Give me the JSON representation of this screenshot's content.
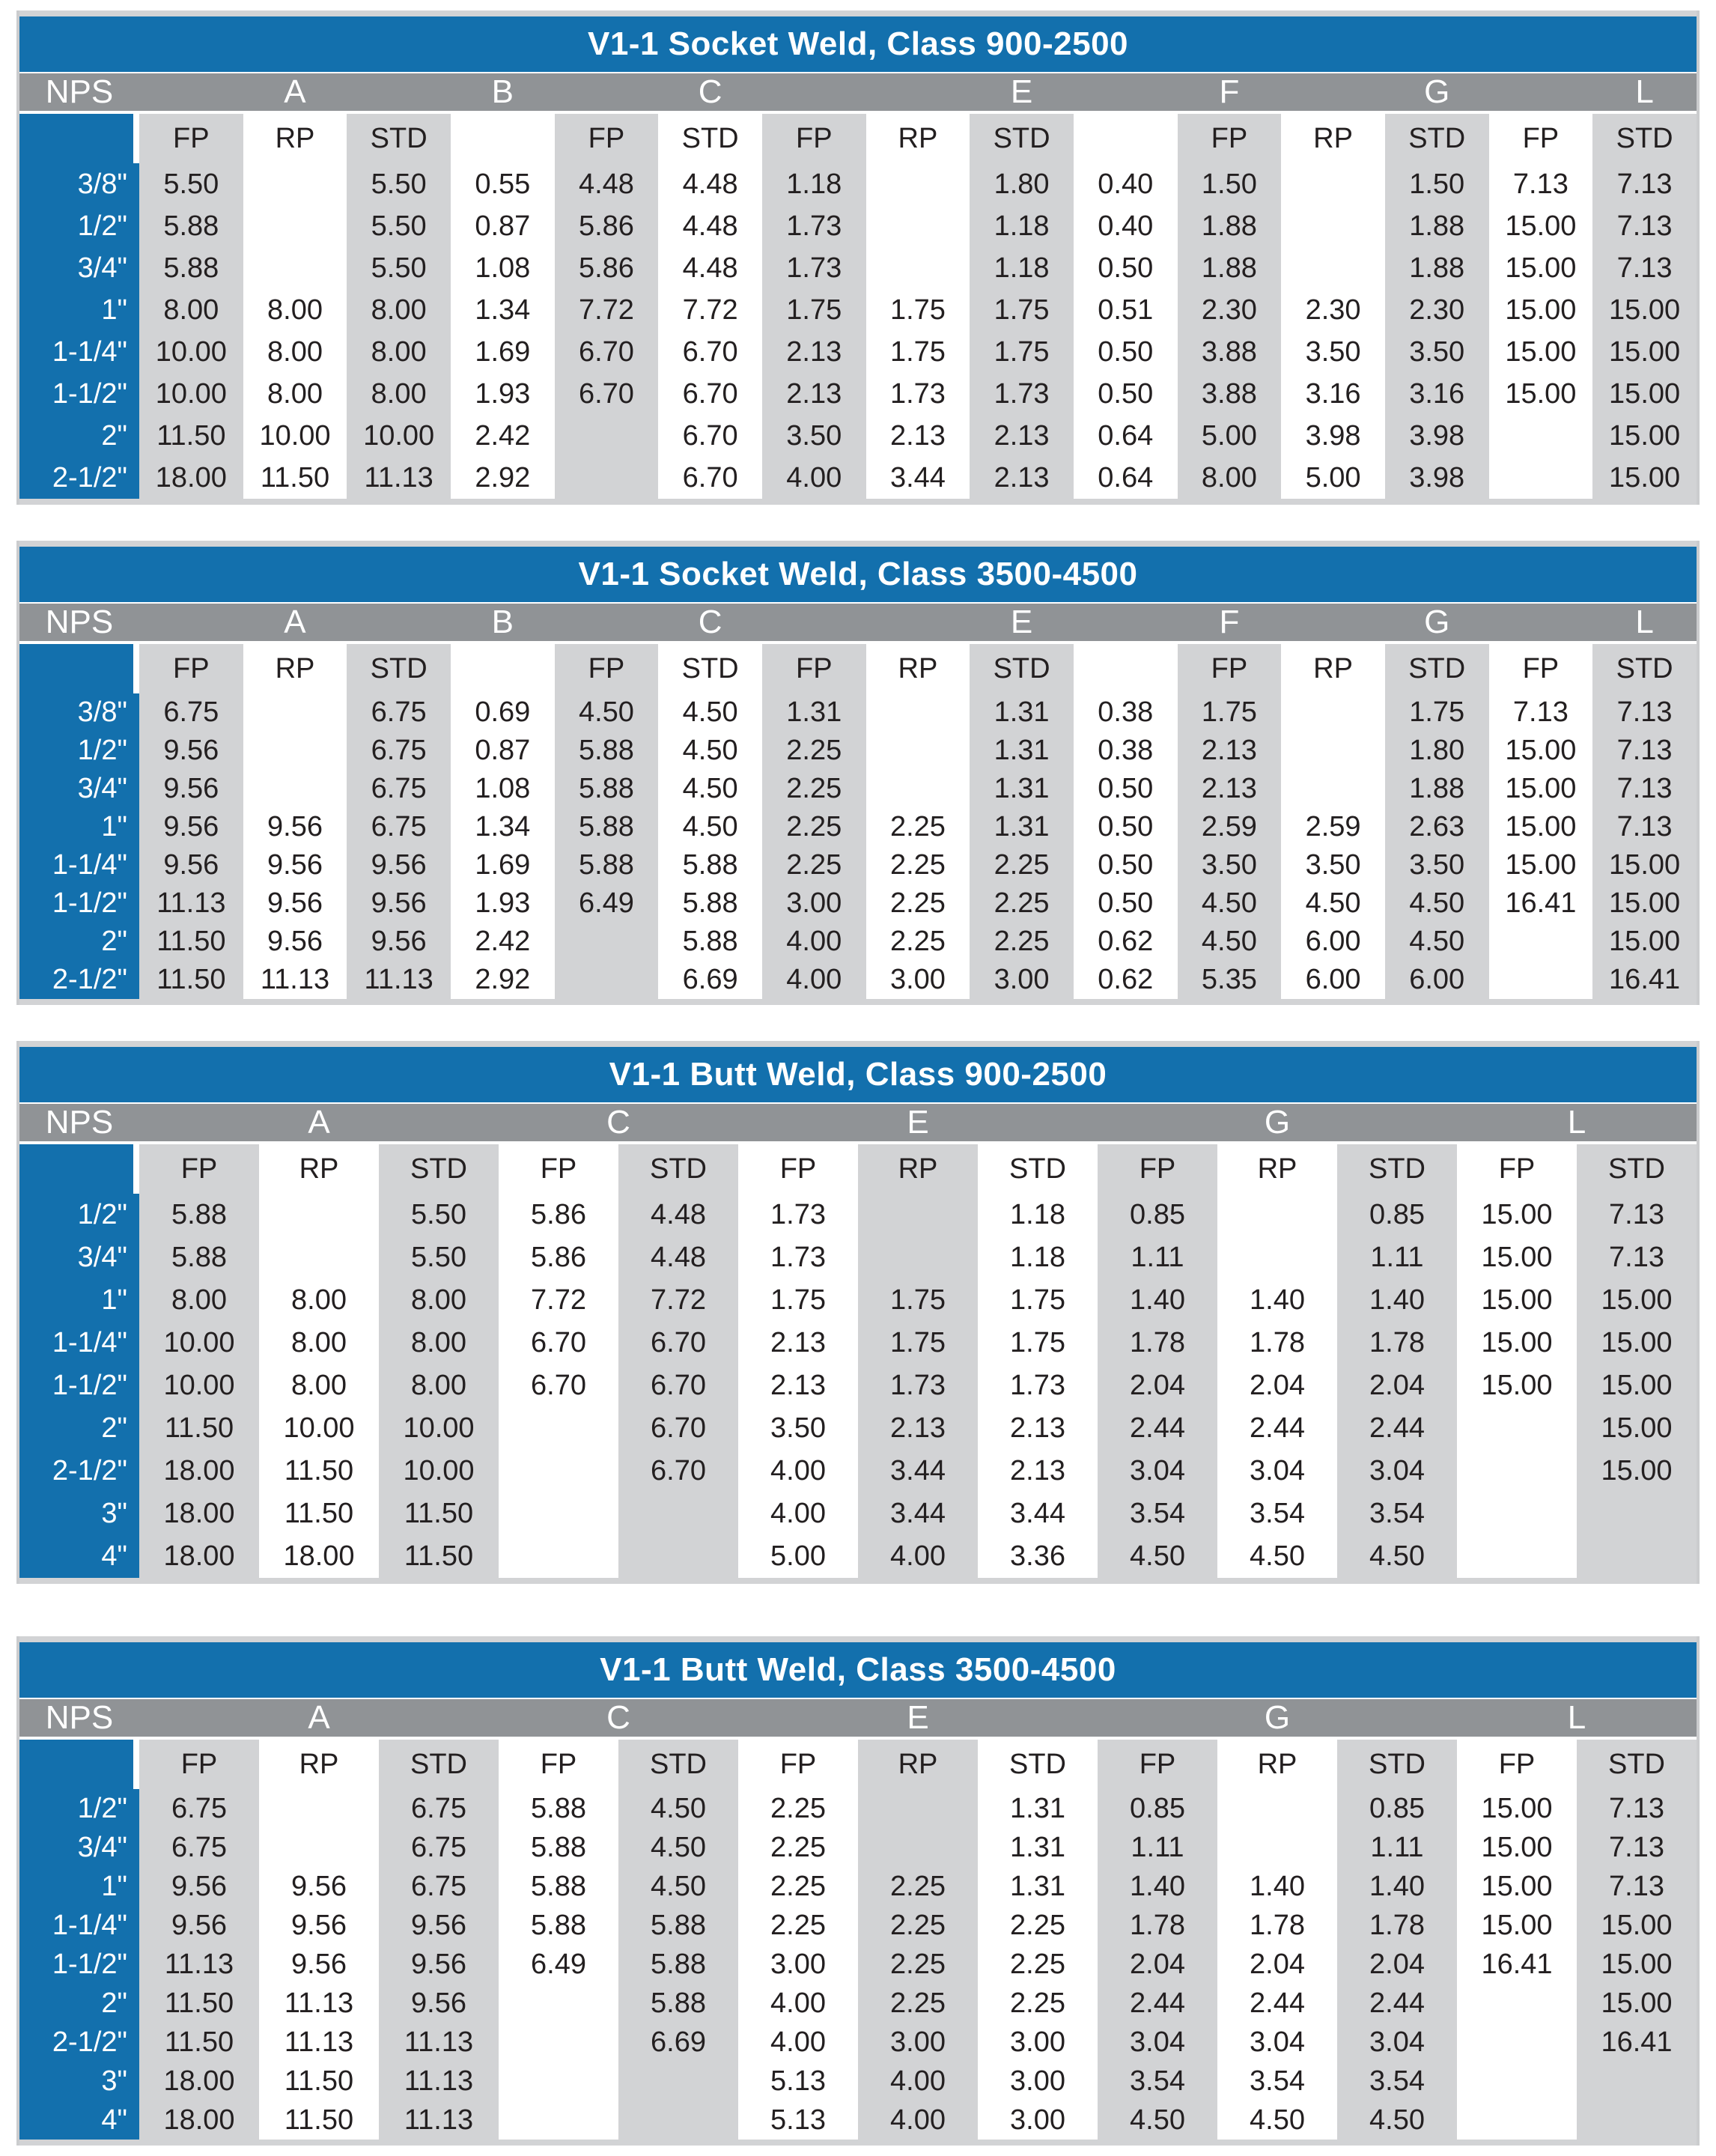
{
  "page": {
    "background": "#ffffff"
  },
  "colors": {
    "title_bar_blue": "#1370ad",
    "group_header_gray": "#909396",
    "band_light_gray": "#d2d3d5",
    "band_white": "#ffffff",
    "nps_column_blue": "#1370ad",
    "text_dark": "#231f20",
    "header_text_white": "#ffffff",
    "edge_strip_gray": "#cbccce"
  },
  "tables": [
    {
      "title": "V1-1 Socket Weld, Class 900-2500",
      "group_headers": [
        {
          "label": "NPS",
          "span": 1
        },
        {
          "label": "A",
          "span": 3
        },
        {
          "label": "B",
          "span": 1
        },
        {
          "label": "C",
          "span": 3
        },
        {
          "label": "E",
          "span": 3
        },
        {
          "label": "F",
          "span": 1
        },
        {
          "label": "G",
          "span": 3
        },
        {
          "label": "L",
          "span": 1
        }
      ],
      "sub_headers": [
        "",
        "FP",
        "RP",
        "STD",
        "",
        "FP",
        "STD",
        "FP",
        "RP",
        "STD",
        "",
        "FP",
        "RP",
        "STD",
        "FP",
        "STD"
      ],
      "rows": [
        {
          "nps": "3/8\"",
          "values": [
            "5.50",
            "",
            "5.50",
            "0.55",
            "4.48",
            "4.48",
            "1.18",
            "",
            "1.80",
            "0.40",
            "1.50",
            "",
            "1.50",
            "7.13",
            "7.13"
          ]
        },
        {
          "nps": "1/2\"",
          "values": [
            "5.88",
            "",
            "5.50",
            "0.87",
            "5.86",
            "4.48",
            "1.73",
            "",
            "1.18",
            "0.40",
            "1.88",
            "",
            "1.88",
            "15.00",
            "7.13"
          ]
        },
        {
          "nps": "3/4\"",
          "values": [
            "5.88",
            "",
            "5.50",
            "1.08",
            "5.86",
            "4.48",
            "1.73",
            "",
            "1.18",
            "0.50",
            "1.88",
            "",
            "1.88",
            "15.00",
            "7.13"
          ]
        },
        {
          "nps": "1\"",
          "values": [
            "8.00",
            "8.00",
            "8.00",
            "1.34",
            "7.72",
            "7.72",
            "1.75",
            "1.75",
            "1.75",
            "0.51",
            "2.30",
            "2.30",
            "2.30",
            "15.00",
            "15.00"
          ]
        },
        {
          "nps": "1-1/4\"",
          "values": [
            "10.00",
            "8.00",
            "8.00",
            "1.69",
            "6.70",
            "6.70",
            "2.13",
            "1.75",
            "1.75",
            "0.50",
            "3.88",
            "3.50",
            "3.50",
            "15.00",
            "15.00"
          ]
        },
        {
          "nps": "1-1/2\"",
          "values": [
            "10.00",
            "8.00",
            "8.00",
            "1.93",
            "6.70",
            "6.70",
            "2.13",
            "1.73",
            "1.73",
            "0.50",
            "3.88",
            "3.16",
            "3.16",
            "15.00",
            "15.00"
          ]
        },
        {
          "nps": "2\"",
          "values": [
            "11.50",
            "10.00",
            "10.00",
            "2.42",
            "",
            "6.70",
            "3.50",
            "2.13",
            "2.13",
            "0.64",
            "5.00",
            "3.98",
            "3.98",
            "",
            "15.00"
          ]
        },
        {
          "nps": "2-1/2\"",
          "values": [
            "18.00",
            "11.50",
            "11.13",
            "2.92",
            "",
            "6.70",
            "4.00",
            "3.44",
            "2.13",
            "0.64",
            "8.00",
            "5.00",
            "3.98",
            "",
            "15.00"
          ]
        }
      ]
    },
    {
      "title": "V1-1 Socket Weld, Class 3500-4500",
      "group_headers": [
        {
          "label": "NPS",
          "span": 1
        },
        {
          "label": "A",
          "span": 3
        },
        {
          "label": "B",
          "span": 1
        },
        {
          "label": "C",
          "span": 3
        },
        {
          "label": "E",
          "span": 3
        },
        {
          "label": "F",
          "span": 1
        },
        {
          "label": "G",
          "span": 3
        },
        {
          "label": "L",
          "span": 1
        }
      ],
      "sub_headers": [
        "",
        "FP",
        "RP",
        "STD",
        "",
        "FP",
        "STD",
        "FP",
        "RP",
        "STD",
        "",
        "FP",
        "RP",
        "STD",
        "FP",
        "STD"
      ],
      "rows": [
        {
          "nps": "3/8\"",
          "values": [
            "6.75",
            "",
            "6.75",
            "0.69",
            "4.50",
            "4.50",
            "1.31",
            "",
            "1.31",
            "0.38",
            "1.75",
            "",
            "1.75",
            "7.13",
            "7.13"
          ]
        },
        {
          "nps": "1/2\"",
          "values": [
            "9.56",
            "",
            "6.75",
            "0.87",
            "5.88",
            "4.50",
            "2.25",
            "",
            "1.31",
            "0.38",
            "2.13",
            "",
            "1.80",
            "15.00",
            "7.13"
          ]
        },
        {
          "nps": "3/4\"",
          "values": [
            "9.56",
            "",
            "6.75",
            "1.08",
            "5.88",
            "4.50",
            "2.25",
            "",
            "1.31",
            "0.50",
            "2.13",
            "",
            "1.88",
            "15.00",
            "7.13"
          ]
        },
        {
          "nps": "1\"",
          "values": [
            "9.56",
            "9.56",
            "6.75",
            "1.34",
            "5.88",
            "4.50",
            "2.25",
            "2.25",
            "1.31",
            "0.50",
            "2.59",
            "2.59",
            "2.63",
            "15.00",
            "7.13"
          ]
        },
        {
          "nps": "1-1/4\"",
          "values": [
            "9.56",
            "9.56",
            "9.56",
            "1.69",
            "5.88",
            "5.88",
            "2.25",
            "2.25",
            "2.25",
            "0.50",
            "3.50",
            "3.50",
            "3.50",
            "15.00",
            "15.00"
          ]
        },
        {
          "nps": "1-1/2\"",
          "values": [
            "11.13",
            "9.56",
            "9.56",
            "1.93",
            "6.49",
            "5.88",
            "3.00",
            "2.25",
            "2.25",
            "0.50",
            "4.50",
            "4.50",
            "4.50",
            "16.41",
            "15.00"
          ]
        },
        {
          "nps": "2\"",
          "values": [
            "11.50",
            "9.56",
            "9.56",
            "2.42",
            "",
            "5.88",
            "4.00",
            "2.25",
            "2.25",
            "0.62",
            "4.50",
            "6.00",
            "4.50",
            "",
            "15.00"
          ]
        },
        {
          "nps": "2-1/2\"",
          "values": [
            "11.50",
            "11.13",
            "11.13",
            "2.92",
            "",
            "6.69",
            "4.00",
            "3.00",
            "3.00",
            "0.62",
            "5.35",
            "6.00",
            "6.00",
            "",
            "16.41"
          ]
        }
      ]
    },
    {
      "title": "V1-1 Butt Weld, Class 900-2500",
      "group_headers": [
        {
          "label": "NPS",
          "span": 1
        },
        {
          "label": "A",
          "span": 3
        },
        {
          "label": "C",
          "span": 2
        },
        {
          "label": "E",
          "span": 3
        },
        {
          "label": "G",
          "span": 3
        },
        {
          "label": "L",
          "span": 2
        }
      ],
      "sub_headers": [
        "",
        "FP",
        "RP",
        "STD",
        "FP",
        "STD",
        "FP",
        "RP",
        "STD",
        "FP",
        "RP",
        "STD",
        "FP",
        "STD"
      ],
      "rows": [
        {
          "nps": "1/2\"",
          "values": [
            "5.88",
            "",
            "5.50",
            "5.86",
            "4.48",
            "1.73",
            "",
            "1.18",
            "0.85",
            "",
            "0.85",
            "15.00",
            "7.13"
          ]
        },
        {
          "nps": "3/4\"",
          "values": [
            "5.88",
            "",
            "5.50",
            "5.86",
            "4.48",
            "1.73",
            "",
            "1.18",
            "1.11",
            "",
            "1.11",
            "15.00",
            "7.13"
          ]
        },
        {
          "nps": "1\"",
          "values": [
            "8.00",
            "8.00",
            "8.00",
            "7.72",
            "7.72",
            "1.75",
            "1.75",
            "1.75",
            "1.40",
            "1.40",
            "1.40",
            "15.00",
            "15.00"
          ]
        },
        {
          "nps": "1-1/4\"",
          "values": [
            "10.00",
            "8.00",
            "8.00",
            "6.70",
            "6.70",
            "2.13",
            "1.75",
            "1.75",
            "1.78",
            "1.78",
            "1.78",
            "15.00",
            "15.00"
          ]
        },
        {
          "nps": "1-1/2\"",
          "values": [
            "10.00",
            "8.00",
            "8.00",
            "6.70",
            "6.70",
            "2.13",
            "1.73",
            "1.73",
            "2.04",
            "2.04",
            "2.04",
            "15.00",
            "15.00"
          ]
        },
        {
          "nps": "2\"",
          "values": [
            "11.50",
            "10.00",
            "10.00",
            "",
            "6.70",
            "3.50",
            "2.13",
            "2.13",
            "2.44",
            "2.44",
            "2.44",
            "",
            "15.00"
          ]
        },
        {
          "nps": "2-1/2\"",
          "values": [
            "18.00",
            "11.50",
            "10.00",
            "",
            "6.70",
            "4.00",
            "3.44",
            "2.13",
            "3.04",
            "3.04",
            "3.04",
            "",
            "15.00"
          ]
        },
        {
          "nps": "3\"",
          "values": [
            "18.00",
            "11.50",
            "11.50",
            "",
            "",
            "4.00",
            "3.44",
            "3.44",
            "3.54",
            "3.54",
            "3.54",
            "",
            ""
          ]
        },
        {
          "nps": "4\"",
          "values": [
            "18.00",
            "18.00",
            "11.50",
            "",
            "",
            "5.00",
            "4.00",
            "3.36",
            "4.50",
            "4.50",
            "4.50",
            "",
            ""
          ]
        }
      ]
    },
    {
      "title": "V1-1 Butt Weld, Class 3500-4500",
      "group_headers": [
        {
          "label": "NPS",
          "span": 1
        },
        {
          "label": "A",
          "span": 3
        },
        {
          "label": "C",
          "span": 2
        },
        {
          "label": "E",
          "span": 3
        },
        {
          "label": "G",
          "span": 3
        },
        {
          "label": "L",
          "span": 2
        }
      ],
      "sub_headers": [
        "",
        "FP",
        "RP",
        "STD",
        "FP",
        "STD",
        "FP",
        "RP",
        "STD",
        "FP",
        "RP",
        "STD",
        "FP",
        "STD"
      ],
      "rows": [
        {
          "nps": "1/2\"",
          "values": [
            "6.75",
            "",
            "6.75",
            "5.88",
            "4.50",
            "2.25",
            "",
            "1.31",
            "0.85",
            "",
            "0.85",
            "15.00",
            "7.13"
          ]
        },
        {
          "nps": "3/4\"",
          "values": [
            "6.75",
            "",
            "6.75",
            "5.88",
            "4.50",
            "2.25",
            "",
            "1.31",
            "1.11",
            "",
            "1.11",
            "15.00",
            "7.13"
          ]
        },
        {
          "nps": "1\"",
          "values": [
            "9.56",
            "9.56",
            "6.75",
            "5.88",
            "4.50",
            "2.25",
            "2.25",
            "1.31",
            "1.40",
            "1.40",
            "1.40",
            "15.00",
            "7.13"
          ]
        },
        {
          "nps": "1-1/4\"",
          "values": [
            "9.56",
            "9.56",
            "9.56",
            "5.88",
            "5.88",
            "2.25",
            "2.25",
            "2.25",
            "1.78",
            "1.78",
            "1.78",
            "15.00",
            "15.00"
          ]
        },
        {
          "nps": "1-1/2\"",
          "values": [
            "11.13",
            "9.56",
            "9.56",
            "6.49",
            "5.88",
            "3.00",
            "2.25",
            "2.25",
            "2.04",
            "2.04",
            "2.04",
            "16.41",
            "15.00"
          ]
        },
        {
          "nps": "2\"",
          "values": [
            "11.50",
            "11.13",
            "9.56",
            "",
            "5.88",
            "4.00",
            "2.25",
            "2.25",
            "2.44",
            "2.44",
            "2.44",
            "",
            "15.00"
          ]
        },
        {
          "nps": "2-1/2\"",
          "values": [
            "11.50",
            "11.13",
            "11.13",
            "",
            "6.69",
            "4.00",
            "3.00",
            "3.00",
            "3.04",
            "3.04",
            "3.04",
            "",
            "16.41"
          ]
        },
        {
          "nps": "3\"",
          "values": [
            "18.00",
            "11.50",
            "11.13",
            "",
            "",
            "5.13",
            "4.00",
            "3.00",
            "3.54",
            "3.54",
            "3.54",
            "",
            ""
          ]
        },
        {
          "nps": "4\"",
          "values": [
            "18.00",
            "11.50",
            "11.13",
            "",
            "",
            "5.13",
            "4.00",
            "3.00",
            "4.50",
            "4.50",
            "4.50",
            "",
            ""
          ]
        }
      ]
    }
  ]
}
